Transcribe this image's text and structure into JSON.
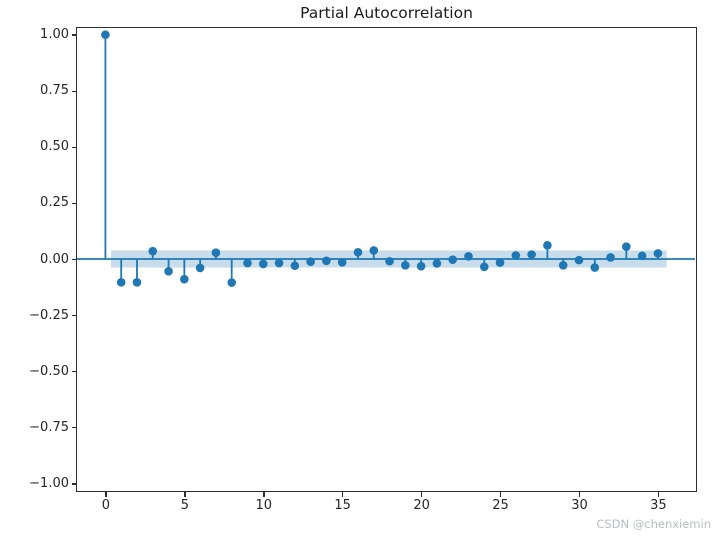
{
  "watermark": {
    "text": "CSDN @chenxiemin",
    "color": "#b9bdc3"
  },
  "chart_data": {
    "type": "stem",
    "title": "Partial Autocorrelation",
    "xlabel": "",
    "ylabel": "",
    "grid": false,
    "legend": null,
    "x": [
      0,
      1,
      2,
      3,
      4,
      5,
      6,
      7,
      8,
      9,
      10,
      11,
      12,
      13,
      14,
      15,
      16,
      17,
      18,
      19,
      20,
      21,
      22,
      23,
      24,
      25,
      26,
      27,
      28,
      29,
      30,
      31,
      32,
      33,
      34,
      35
    ],
    "values": [
      1.0,
      -0.104,
      -0.104,
      0.035,
      -0.055,
      -0.09,
      -0.04,
      0.028,
      -0.105,
      -0.018,
      -0.022,
      -0.018,
      -0.03,
      -0.012,
      -0.008,
      -0.015,
      0.03,
      0.038,
      -0.01,
      -0.028,
      -0.032,
      -0.02,
      -0.003,
      0.012,
      -0.035,
      -0.016,
      0.016,
      0.02,
      0.061,
      -0.028,
      -0.005,
      -0.038,
      0.007,
      0.055,
      0.014,
      0.025
    ],
    "confidence_band": {
      "lower": -0.038,
      "upper": 0.038,
      "x_start": 0.35,
      "x_end": 35.55
    },
    "xlim": [
      -1.8,
      37.35
    ],
    "ylim": [
      -1.03,
      1.03
    ],
    "xticks": [
      0,
      5,
      10,
      15,
      20,
      25,
      30,
      35
    ],
    "xtick_labels": [
      "0",
      "5",
      "10",
      "15",
      "20",
      "25",
      "30",
      "35"
    ],
    "ytick_values": [
      1.0,
      0.75,
      0.5,
      0.25,
      0.0,
      -0.25,
      -0.5,
      -0.75,
      -1.0
    ],
    "ytick_labels": [
      "1.00",
      "0.75",
      "0.50",
      "0.25",
      "0.00",
      "−0.25",
      "−0.50",
      "−0.75",
      "−1.00"
    ],
    "accent_color": "#1f77b4",
    "band_color": "rgba(31,119,180,0.25)",
    "axis_color": "#2e2e2e",
    "tick_label_color": "#262626"
  }
}
